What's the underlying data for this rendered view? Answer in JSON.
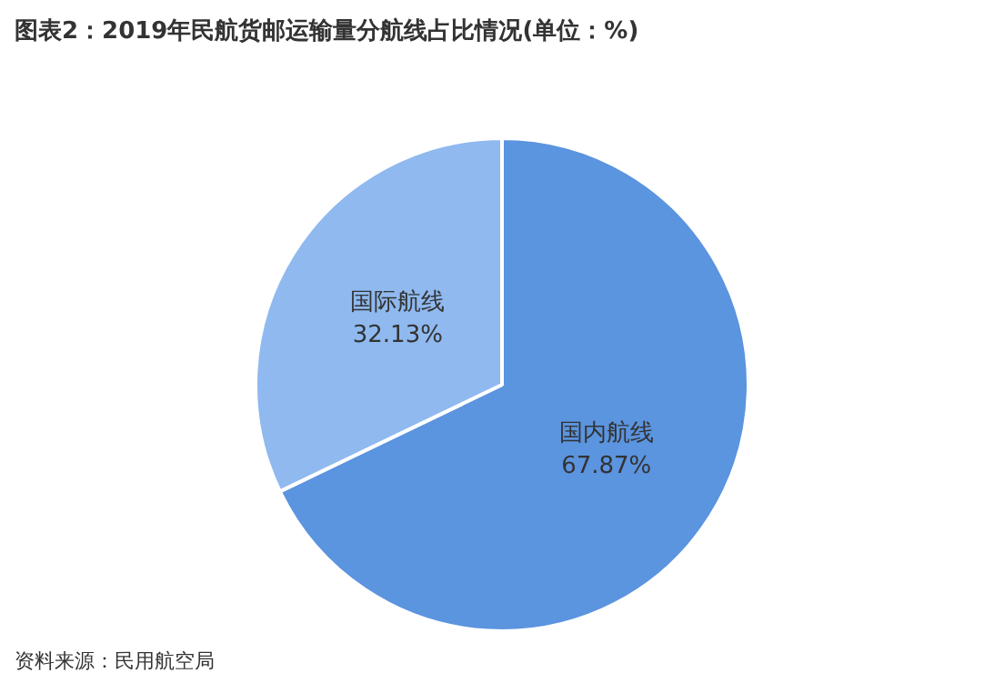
{
  "chart_data": {
    "type": "pie",
    "title": "图表2：2019年民航货邮运输量分航线占比情况(单位：%)",
    "categories": [
      "国内航线",
      "国际航线"
    ],
    "values": [
      67.87,
      32.13
    ],
    "colors": [
      "#5b94df",
      "#8fb9ef"
    ],
    "value_labels": [
      "67.87%",
      "32.13%"
    ],
    "legend": false,
    "annotations": [
      "资料来源：民用航空局"
    ]
  }
}
